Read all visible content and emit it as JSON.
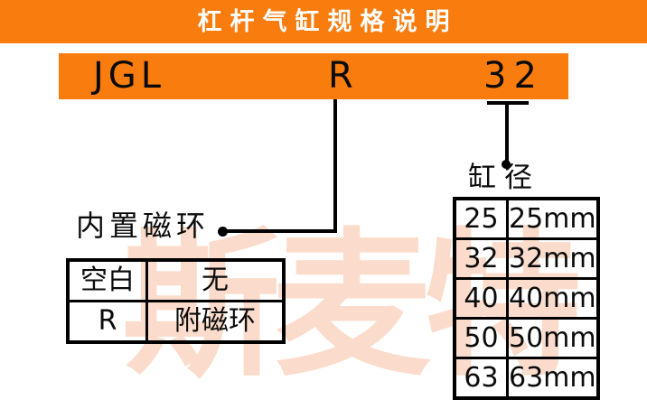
{
  "title": "杠杆气缸规格说明",
  "model": {
    "prefix": "JGL",
    "option": "R",
    "bore": "32"
  },
  "bore": {
    "label": "缸径",
    "rows": [
      [
        "25",
        "25mm"
      ],
      [
        "32",
        "32mm"
      ],
      [
        "40",
        "40mm"
      ],
      [
        "50",
        "50mm"
      ],
      [
        "63",
        "63mm"
      ]
    ]
  },
  "magnet": {
    "label": "内置磁环",
    "rows": [
      [
        "空白",
        "无"
      ],
      [
        "R",
        "附磁环"
      ]
    ]
  },
  "watermark": {
    "text": "斯麦特"
  },
  "colors": {
    "accent_orange": "#f87c0e",
    "watermark_pink": "#fbdccc",
    "ink_black": "#000000",
    "title_text_white": "#ffffff"
  }
}
